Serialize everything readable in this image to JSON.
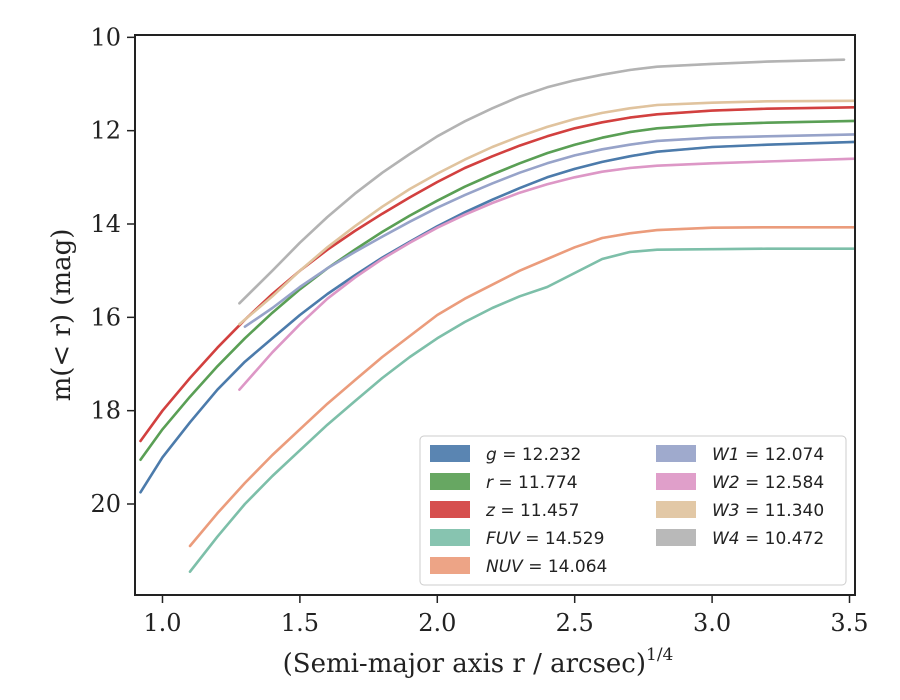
{
  "chart_data": {
    "type": "line",
    "xlabel": "(Semi-major axis r / arcsec)",
    "xlabel_power": "1/4",
    "ylabel": "m(< r) (mag)",
    "xlim": [
      0.9,
      3.52
    ],
    "ylim": [
      21.95,
      9.95
    ],
    "y_inverted": true,
    "xticks": [
      "1.0",
      "1.5",
      "2.0",
      "2.5",
      "3.0",
      "3.5"
    ],
    "yticks": [
      "10",
      "12",
      "14",
      "16",
      "18",
      "20"
    ],
    "legend_position": "lower-right",
    "series": [
      {
        "name": "g",
        "value": "12.232",
        "color": "#4c7bab",
        "x": [
          0.92,
          1.0,
          1.1,
          1.2,
          1.3,
          1.4,
          1.5,
          1.6,
          1.7,
          1.8,
          1.9,
          2.0,
          2.1,
          2.2,
          2.3,
          2.4,
          2.5,
          2.6,
          2.7,
          2.8,
          3.0,
          3.2,
          3.52
        ],
        "y": [
          19.75,
          19.0,
          18.25,
          17.55,
          16.95,
          16.45,
          15.95,
          15.5,
          15.1,
          14.72,
          14.38,
          14.05,
          13.75,
          13.48,
          13.23,
          13.0,
          12.82,
          12.67,
          12.55,
          12.45,
          12.35,
          12.3,
          12.24
        ]
      },
      {
        "name": "r",
        "value": "11.774",
        "color": "#5a9f55",
        "x": [
          0.92,
          1.0,
          1.1,
          1.2,
          1.3,
          1.4,
          1.5,
          1.6,
          1.7,
          1.8,
          1.9,
          2.0,
          2.1,
          2.2,
          2.3,
          2.4,
          2.5,
          2.6,
          2.7,
          2.8,
          3.0,
          3.2,
          3.52
        ],
        "y": [
          19.05,
          18.4,
          17.7,
          17.05,
          16.45,
          15.9,
          15.4,
          14.95,
          14.55,
          14.17,
          13.82,
          13.5,
          13.2,
          12.94,
          12.7,
          12.48,
          12.3,
          12.15,
          12.03,
          11.95,
          11.87,
          11.83,
          11.79
        ]
      },
      {
        "name": "z",
        "value": "11.457",
        "color": "#d2403f",
        "x": [
          0.92,
          1.0,
          1.1,
          1.2,
          1.3,
          1.4,
          1.5,
          1.6,
          1.7,
          1.8,
          1.9,
          2.0,
          2.1,
          2.2,
          2.3,
          2.4,
          2.5,
          2.6,
          2.7,
          2.8,
          3.0,
          3.2,
          3.52
        ],
        "y": [
          18.65,
          18.0,
          17.3,
          16.65,
          16.05,
          15.5,
          15.0,
          14.55,
          14.15,
          13.78,
          13.43,
          13.1,
          12.8,
          12.55,
          12.32,
          12.12,
          11.95,
          11.82,
          11.72,
          11.65,
          11.57,
          11.53,
          11.5
        ]
      },
      {
        "name": "FUV",
        "value": "14.529",
        "color": "#7dbfa9",
        "x": [
          1.1,
          1.2,
          1.3,
          1.4,
          1.5,
          1.6,
          1.7,
          1.8,
          1.9,
          2.0,
          2.1,
          2.2,
          2.3,
          2.4,
          2.5,
          2.6,
          2.7,
          2.8,
          3.0,
          3.2,
          3.52
        ],
        "y": [
          21.45,
          20.7,
          20.0,
          19.4,
          18.85,
          18.3,
          17.8,
          17.3,
          16.85,
          16.45,
          16.1,
          15.8,
          15.55,
          15.35,
          15.05,
          14.75,
          14.6,
          14.55,
          14.54,
          14.53,
          14.53
        ]
      },
      {
        "name": "NUV",
        "value": "14.064",
        "color": "#eb9c7c",
        "x": [
          1.1,
          1.2,
          1.3,
          1.4,
          1.5,
          1.6,
          1.7,
          1.8,
          1.9,
          2.0,
          2.1,
          2.2,
          2.3,
          2.4,
          2.5,
          2.6,
          2.7,
          2.8,
          3.0,
          3.2,
          3.52
        ],
        "y": [
          20.9,
          20.2,
          19.55,
          18.95,
          18.4,
          17.85,
          17.35,
          16.85,
          16.4,
          15.95,
          15.6,
          15.3,
          15.0,
          14.75,
          14.5,
          14.3,
          14.2,
          14.13,
          14.08,
          14.07,
          14.07
        ]
      },
      {
        "name": "W1",
        "value": "12.074",
        "color": "#97a3c9",
        "x": [
          1.3,
          1.4,
          1.5,
          1.6,
          1.7,
          1.8,
          1.9,
          2.0,
          2.1,
          2.2,
          2.3,
          2.4,
          2.5,
          2.6,
          2.7,
          2.8,
          3.0,
          3.2,
          3.52
        ],
        "y": [
          16.2,
          15.8,
          15.35,
          14.95,
          14.6,
          14.27,
          13.95,
          13.65,
          13.38,
          13.13,
          12.9,
          12.7,
          12.53,
          12.4,
          12.3,
          12.22,
          12.15,
          12.12,
          12.08
        ]
      },
      {
        "name": "W2",
        "value": "12.584",
        "color": "#dd97c6",
        "x": [
          1.28,
          1.4,
          1.5,
          1.6,
          1.7,
          1.8,
          1.9,
          2.0,
          2.1,
          2.2,
          2.3,
          2.4,
          2.5,
          2.6,
          2.7,
          2.8,
          3.0,
          3.2,
          3.52
        ],
        "y": [
          17.55,
          16.75,
          16.15,
          15.6,
          15.15,
          14.75,
          14.4,
          14.08,
          13.8,
          13.55,
          13.33,
          13.15,
          13.0,
          12.88,
          12.8,
          12.75,
          12.7,
          12.66,
          12.6
        ]
      },
      {
        "name": "W3",
        "value": "11.340",
        "color": "#e0c39e",
        "x": [
          1.28,
          1.4,
          1.5,
          1.6,
          1.7,
          1.8,
          1.9,
          2.0,
          2.1,
          2.2,
          2.3,
          2.4,
          2.5,
          2.6,
          2.7,
          2.8,
          3.0,
          3.2,
          3.52
        ],
        "y": [
          16.15,
          15.55,
          15.0,
          14.5,
          14.05,
          13.63,
          13.25,
          12.92,
          12.62,
          12.35,
          12.12,
          11.92,
          11.75,
          11.62,
          11.52,
          11.45,
          11.4,
          11.37,
          11.36
        ]
      },
      {
        "name": "W4",
        "value": "10.472",
        "color": "#b3b3b3",
        "x": [
          1.28,
          1.4,
          1.5,
          1.6,
          1.7,
          1.8,
          1.9,
          2.0,
          2.1,
          2.2,
          2.3,
          2.4,
          2.5,
          2.6,
          2.7,
          2.8,
          3.0,
          3.2,
          3.48
        ],
        "y": [
          15.7,
          15.0,
          14.4,
          13.85,
          13.35,
          12.9,
          12.5,
          12.12,
          11.8,
          11.52,
          11.27,
          11.07,
          10.92,
          10.8,
          10.7,
          10.63,
          10.57,
          10.52,
          10.48
        ]
      }
    ]
  }
}
